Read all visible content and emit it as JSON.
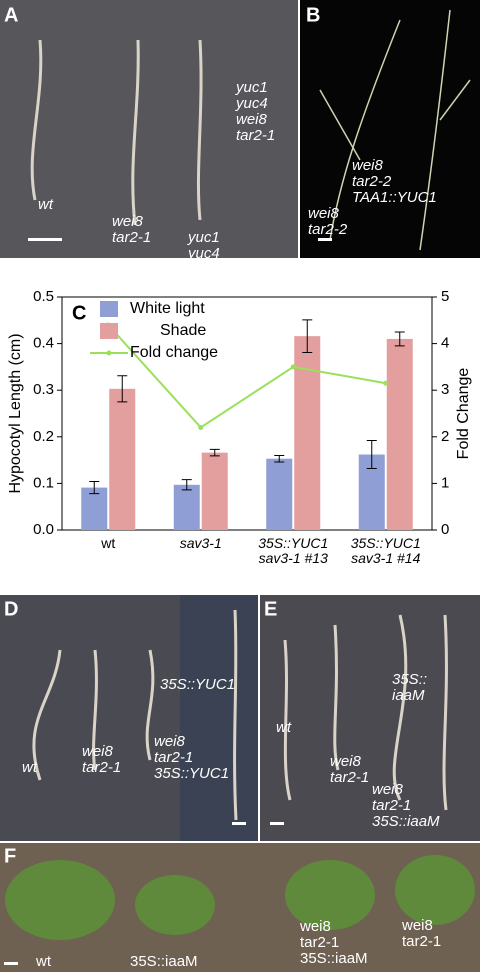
{
  "panels": [
    {
      "letter": "A",
      "labels": [
        [
          "wt"
        ],
        [
          "wei8",
          "tar2-1"
        ],
        [
          "yuc1",
          "yuc4"
        ],
        [
          "yuc1",
          "yuc4",
          "wei8",
          "tar2-1"
        ]
      ]
    },
    {
      "letter": "B",
      "labels": [
        [
          "wei8",
          "tar2-2",
          "TAA1::YUC1"
        ],
        [
          "wei8",
          "tar2-2"
        ]
      ]
    },
    {
      "letter": "D",
      "labels": [
        [
          "wt"
        ],
        [
          "wei8",
          "tar2-1"
        ],
        [
          "35S::YUC1"
        ],
        [
          "wei8",
          "tar2-1",
          "35S::YUC1"
        ]
      ]
    },
    {
      "letter": "E",
      "labels": [
        [
          "wt"
        ],
        [
          "wei8",
          "tar2-1"
        ],
        [
          "35S::",
          "iaaM"
        ],
        [
          "wei8",
          "tar2-1",
          "35S::iaaM"
        ]
      ]
    },
    {
      "letter": "F",
      "labels": [
        [
          "wt"
        ],
        [
          "35S::iaaM"
        ],
        [
          "wei8",
          "tar2-1",
          "35S::iaaM"
        ],
        [
          "wei8",
          "tar2-1"
        ]
      ]
    }
  ],
  "chart_data": {
    "type": "bar",
    "panel_label": "C",
    "ylabel": "Hypocotyl Length (cm)",
    "y2label": "Fold Change",
    "categories": [
      "wt",
      "sav3-1",
      "35S::YUC1 sav3-1 #13",
      "35S::YUC1 sav3-1 #14"
    ],
    "series": [
      {
        "name": "White light",
        "color": "#8f9fd6",
        "values": [
          0.091,
          0.097,
          0.153,
          0.162
        ],
        "errors": [
          0.013,
          0.011,
          0.007,
          0.03
        ]
      },
      {
        "name": "Shade",
        "color": "#e39e9e",
        "values": [
          0.303,
          0.166,
          0.416,
          0.41
        ],
        "errors": [
          0.028,
          0.007,
          0.035,
          0.015
        ]
      },
      {
        "name": "Fold change",
        "type": "line",
        "axis": "y2",
        "color": "#9ae05a",
        "values": [
          4.4,
          2.2,
          3.5,
          3.15
        ]
      }
    ],
    "ylim": [
      0,
      0.5
    ],
    "yticks": [
      {
        "value": 0,
        "label": "0.0"
      },
      0.1,
      0.2,
      0.3,
      0.4,
      0.5
    ],
    "y2lim": [
      0,
      5
    ],
    "y2ticks": [
      0,
      1,
      2,
      3,
      4,
      5
    ]
  }
}
